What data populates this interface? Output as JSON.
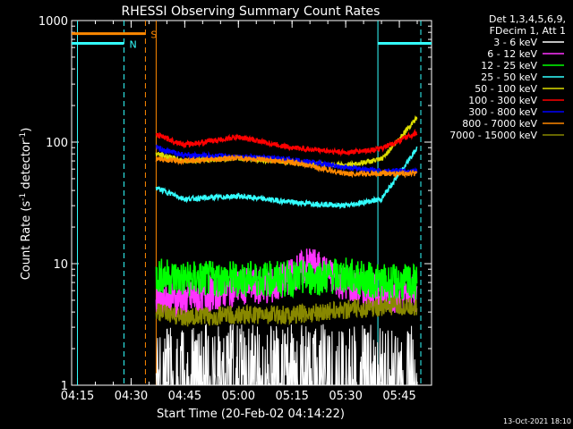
{
  "chart_data": {
    "type": "line",
    "title": "RHESSI Observing Summary Count Rates",
    "xlabel": "Start Time (20-Feb-02 04:14:22)",
    "ylabel_main": "Count Rate (s",
    "ylabel_sup1": "-1",
    "ylabel_mid": " detector",
    "ylabel_sup2": "-1",
    "ylabel_end": ")",
    "yscale": "log",
    "ylim": [
      1,
      1000
    ],
    "xlim_minutes": [
      "04:13",
      "05:54"
    ],
    "xticks": [
      "04:15",
      "04:30",
      "04:45",
      "05:00",
      "05:15",
      "05:30",
      "05:45"
    ],
    "yticks": [
      "1",
      "10",
      "100",
      "1000"
    ],
    "footer": "13-Oct-2021 18:10",
    "legend": {
      "header1": "Det 1,3,4,5,6,9,",
      "header2": "FDecim 1, Att 1",
      "placement": "right"
    },
    "series": [
      {
        "name": "3 - 6 keV",
        "color": "#ffffff",
        "x": [
          "04:37",
          "04:45",
          "05:00",
          "05:15",
          "05:30",
          "05:40",
          "05:50"
        ],
        "values": [
          1.5,
          1.5,
          1.5,
          1.5,
          1.5,
          1.5,
          2.0
        ]
      },
      {
        "name": "6 - 12 keV",
        "color": "#ff33ff",
        "x": [
          "04:37",
          "04:45",
          "05:00",
          "05:10",
          "05:20",
          "05:25",
          "05:35",
          "05:45",
          "05:50"
        ],
        "values": [
          5.5,
          5.0,
          6.5,
          6.5,
          10,
          8,
          6,
          5.5,
          5.5
        ]
      },
      {
        "name": "12 - 25 keV",
        "color": "#00ff00",
        "x": [
          "04:37",
          "04:45",
          "05:00",
          "05:15",
          "05:30",
          "05:40",
          "05:50"
        ],
        "values": [
          8,
          7.5,
          7.5,
          7.5,
          8,
          7,
          7
        ]
      },
      {
        "name": "25 - 50 keV",
        "color": "#33ffff",
        "x": [
          "04:37",
          "04:45",
          "05:00",
          "05:15",
          "05:30",
          "05:40",
          "05:50"
        ],
        "values": [
          42,
          34,
          36,
          32,
          30,
          34,
          90
        ]
      },
      {
        "name": "50 - 100 keV",
        "color": "#dddd00",
        "x": [
          "04:37",
          "04:45",
          "05:00",
          "05:15",
          "05:30",
          "05:40",
          "05:50"
        ],
        "values": [
          80,
          70,
          74,
          68,
          64,
          72,
          160
        ]
      },
      {
        "name": "100 - 300 keV",
        "color": "#ff0000",
        "x": [
          "04:37",
          "04:45",
          "05:00",
          "05:15",
          "05:30",
          "05:40",
          "05:50"
        ],
        "values": [
          115,
          95,
          110,
          90,
          82,
          88,
          120
        ]
      },
      {
        "name": "300 - 800 keV",
        "color": "#0000ff",
        "x": [
          "04:37",
          "04:45",
          "05:00",
          "05:15",
          "05:30",
          "05:40",
          "05:50"
        ],
        "values": [
          90,
          78,
          76,
          72,
          62,
          58,
          58
        ]
      },
      {
        "name": "800 - 7000 keV",
        "color": "#ff8800",
        "x": [
          "04:37",
          "04:45",
          "05:00",
          "05:15",
          "05:30",
          "05:40",
          "05:50"
        ],
        "values": [
          72,
          70,
          74,
          68,
          55,
          55,
          55
        ]
      },
      {
        "name": "7000 - 15000 keV",
        "color": "#888800",
        "x": [
          "04:37",
          "04:45",
          "05:00",
          "05:15",
          "05:30",
          "05:40",
          "05:50"
        ],
        "values": [
          4,
          3.6,
          3.8,
          3.8,
          4.2,
          4.4,
          4.4
        ]
      }
    ],
    "flags": [
      {
        "label": "N",
        "color": "#33ffff",
        "x_start": "04:13",
        "x_end": "04:28",
        "level": 650
      },
      {
        "label": "S",
        "color": "#ff8800",
        "x_start": "04:13",
        "x_end": "04:34",
        "level": 780
      },
      {
        "label": "",
        "color": "#33ffff",
        "x_start": "05:39",
        "x_end": "05:54",
        "level": 650
      }
    ],
    "markers": [
      {
        "color": "#33ffff",
        "style": "solid",
        "x": "04:15"
      },
      {
        "color": "#33ffff",
        "style": "dashed",
        "x": "04:28"
      },
      {
        "color": "#ff8800",
        "style": "dashed",
        "x": "04:34"
      },
      {
        "color": "#ff8800",
        "style": "solid",
        "x": "04:37"
      },
      {
        "color": "#33ffff",
        "style": "solid",
        "x": "05:39"
      },
      {
        "color": "#33ffff",
        "style": "dashed",
        "x": "05:51"
      }
    ]
  }
}
